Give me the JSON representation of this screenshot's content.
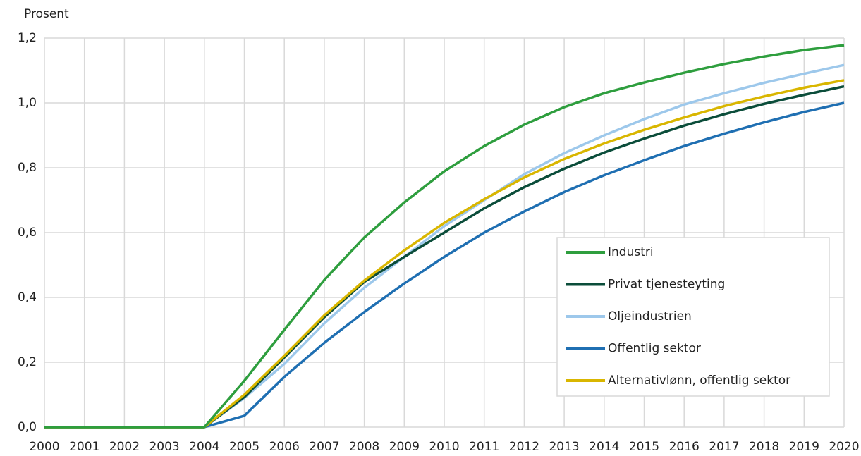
{
  "chart_data": {
    "type": "line",
    "y_label": "Prosent",
    "categories": [
      "2000",
      "2001",
      "2002",
      "2003",
      "2004",
      "2005",
      "2006",
      "2007",
      "2008",
      "2009",
      "2010",
      "2011",
      "2012",
      "2013",
      "2014",
      "2015",
      "2016",
      "2017",
      "2018",
      "2019",
      "2020"
    ],
    "ylim": [
      0,
      1.2
    ],
    "yticks": [
      {
        "value": 0,
        "label": "0,0"
      },
      {
        "value": 0.2,
        "label": "0,2"
      },
      {
        "value": 0.4,
        "label": "0,4"
      },
      {
        "value": 0.6,
        "label": "0,6"
      },
      {
        "value": 0.8,
        "label": "0,8"
      },
      {
        "value": 1.0,
        "label": "1,0"
      },
      {
        "value": 1.2,
        "label": "1,2"
      }
    ],
    "grid": true,
    "legend": "lower right",
    "series": [
      {
        "name": "Industri",
        "color": "#2e9e3e",
        "values": [
          0,
          0,
          0,
          0,
          0,
          0.143,
          0.3,
          0.454,
          0.585,
          0.693,
          0.789,
          0.867,
          0.933,
          0.987,
          1.03,
          1.063,
          1.093,
          1.12,
          1.143,
          1.163,
          1.178
        ]
      },
      {
        "name": "Privat tjenesteyting",
        "color": "#0b4d3a",
        "values": [
          0,
          0,
          0,
          0,
          0,
          0.093,
          0.215,
          0.339,
          0.448,
          0.525,
          0.6,
          0.675,
          0.74,
          0.797,
          0.847,
          0.89,
          0.93,
          0.965,
          0.997,
          1.025,
          1.051
        ]
      },
      {
        "name": "Oljeindustrien",
        "color": "#9dc8eb",
        "values": [
          0,
          0,
          0,
          0,
          0,
          0.09,
          0.195,
          0.32,
          0.43,
          0.525,
          0.62,
          0.7,
          0.78,
          0.845,
          0.9,
          0.95,
          0.995,
          1.03,
          1.062,
          1.09,
          1.117
        ]
      },
      {
        "name": "Offentlig sektor",
        "color": "#1f6fb2",
        "values": [
          0,
          0,
          0,
          0,
          0,
          0.035,
          0.155,
          0.26,
          0.355,
          0.443,
          0.525,
          0.6,
          0.665,
          0.725,
          0.777,
          0.823,
          0.867,
          0.905,
          0.94,
          0.972,
          1.0
        ]
      },
      {
        "name": "Alternativlønn, offentlig sektor",
        "color": "#d9b600",
        "values": [
          0,
          0,
          0,
          0,
          0,
          0.1,
          0.22,
          0.345,
          0.452,
          0.545,
          0.63,
          0.703,
          0.77,
          0.827,
          0.875,
          0.917,
          0.955,
          0.99,
          1.02,
          1.047,
          1.07
        ]
      }
    ]
  }
}
